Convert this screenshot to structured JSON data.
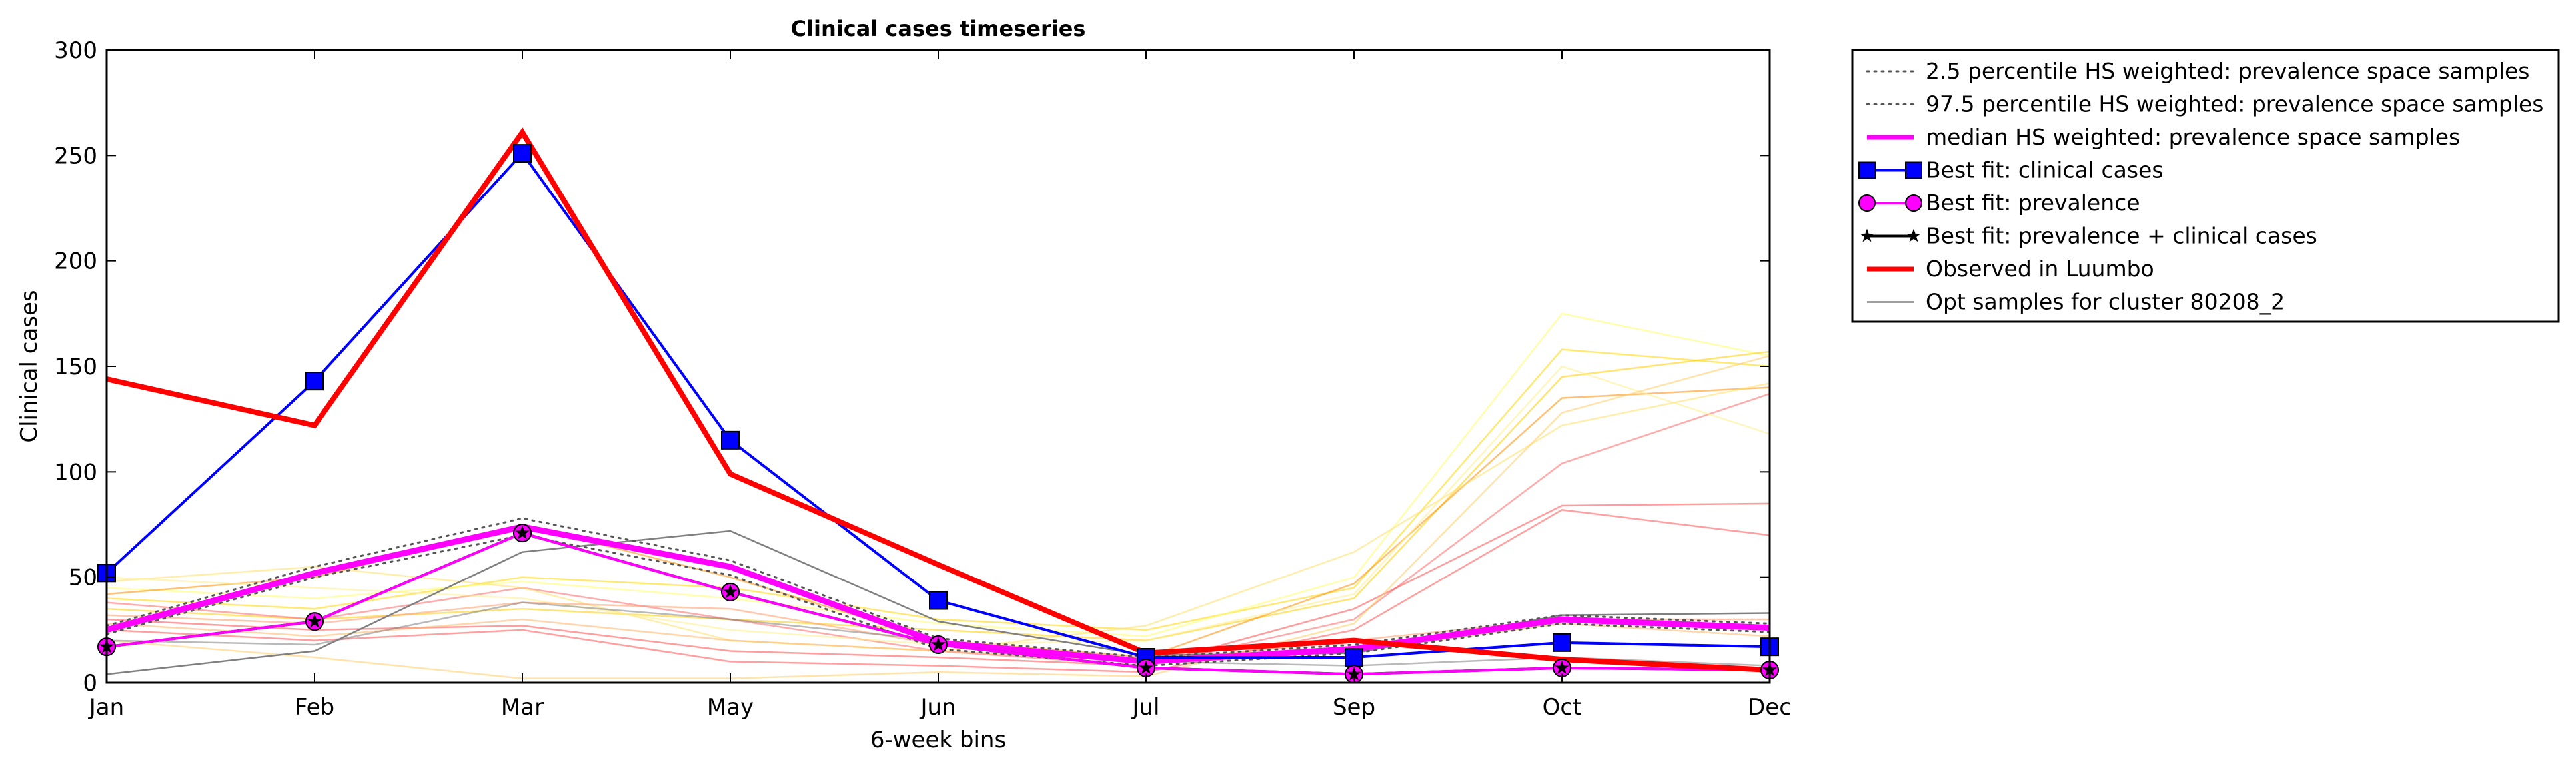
{
  "chart_data": {
    "type": "line",
    "title": "Clinical cases timeseries",
    "xlabel": "6-week bins",
    "ylabel": "Clinical cases",
    "categories": [
      "Jan",
      "Feb",
      "Mar",
      "May",
      "Jun",
      "Jul",
      "Sep",
      "Oct",
      "Dec"
    ],
    "ylim": [
      0,
      300
    ],
    "yticks": [
      0,
      50,
      100,
      150,
      200,
      250,
      300
    ],
    "grid": false,
    "legend_position": "outside-right",
    "series": [
      {
        "name": "2.5 percentile HS weighted: prevalence space samples",
        "color": "#555555",
        "style": "dotted",
        "values": [
          23,
          50,
          70,
          51,
          16,
          8,
          14,
          28,
          24
        ]
      },
      {
        "name": "97.5 percentile HS weighted: prevalence space samples",
        "color": "#555555",
        "style": "dotted",
        "values": [
          27,
          55,
          78,
          58,
          21,
          12,
          18,
          32,
          28
        ]
      },
      {
        "name": "median HS weighted: prevalence space samples",
        "color": "#ff00ff",
        "style": "solid-thick",
        "values": [
          25,
          52,
          74,
          55,
          19,
          10,
          16,
          30,
          26
        ]
      },
      {
        "name": "Best fit: clinical cases",
        "color": "#0000ff",
        "style": "line-square",
        "values": [
          52,
          143,
          251,
          115,
          39,
          12,
          12,
          19,
          17
        ]
      },
      {
        "name": "Best fit: prevalence",
        "color": "#ff00ff",
        "style": "line-circle",
        "values": [
          17,
          29,
          71,
          43,
          18,
          7,
          4,
          7,
          6
        ]
      },
      {
        "name": "Best fit: prevalence + clinical cases",
        "color": "#000000",
        "style": "line-star",
        "values": [
          17,
          29,
          71,
          43,
          18,
          7,
          4,
          7,
          6
        ]
      },
      {
        "name": "Observed in Luumbo",
        "color": "#ff0000",
        "style": "solid-thick",
        "values": [
          144,
          122,
          261,
          99,
          56,
          14,
          20,
          11,
          6
        ]
      },
      {
        "name": "Opt samples for cluster 80208_2",
        "color": "#808080",
        "style": "thin",
        "values": [
          4,
          15,
          62,
          72,
          29,
          13,
          14,
          32,
          33
        ]
      }
    ],
    "background_samples": [
      {
        "color": "#ffd700",
        "values": [
          40,
          35,
          50,
          45,
          30,
          25,
          45,
          158,
          150
        ]
      },
      {
        "color": "#ffff66",
        "values": [
          45,
          40,
          48,
          40,
          28,
          22,
          50,
          175,
          155
        ]
      },
      {
        "color": "#ffcc00",
        "values": [
          35,
          30,
          35,
          30,
          25,
          20,
          40,
          145,
          157
        ]
      },
      {
        "color": "#ff8c00",
        "values": [
          42,
          50,
          75,
          50,
          20,
          12,
          47,
          135,
          140
        ]
      },
      {
        "color": "#ff6666",
        "values": [
          38,
          30,
          45,
          30,
          15,
          8,
          30,
          104,
          137
        ]
      },
      {
        "color": "#ff4d4d",
        "values": [
          30,
          25,
          27,
          15,
          12,
          8,
          35,
          84,
          85
        ]
      },
      {
        "color": "#ff5050",
        "values": [
          25,
          20,
          25,
          10,
          8,
          5,
          25,
          82,
          70
        ]
      },
      {
        "color": "#ffe066",
        "values": [
          48,
          55,
          45,
          20,
          15,
          27,
          62,
          122,
          142
        ]
      },
      {
        "color": "#ffee88",
        "values": [
          50,
          45,
          40,
          25,
          18,
          20,
          42,
          150,
          118
        ]
      },
      {
        "color": "#ffcc66",
        "values": [
          20,
          12,
          2,
          2,
          5,
          3,
          28,
          128,
          155
        ]
      },
      {
        "color": "#ff9966",
        "values": [
          32,
          28,
          38,
          35,
          18,
          10,
          20,
          30,
          30
        ]
      },
      {
        "color": "#ffb366",
        "values": [
          28,
          22,
          30,
          20,
          15,
          10,
          15,
          28,
          22
        ]
      },
      {
        "color": "#808080",
        "values": [
          20,
          18,
          38,
          30,
          20,
          10,
          8,
          12,
          8
        ]
      }
    ]
  }
}
